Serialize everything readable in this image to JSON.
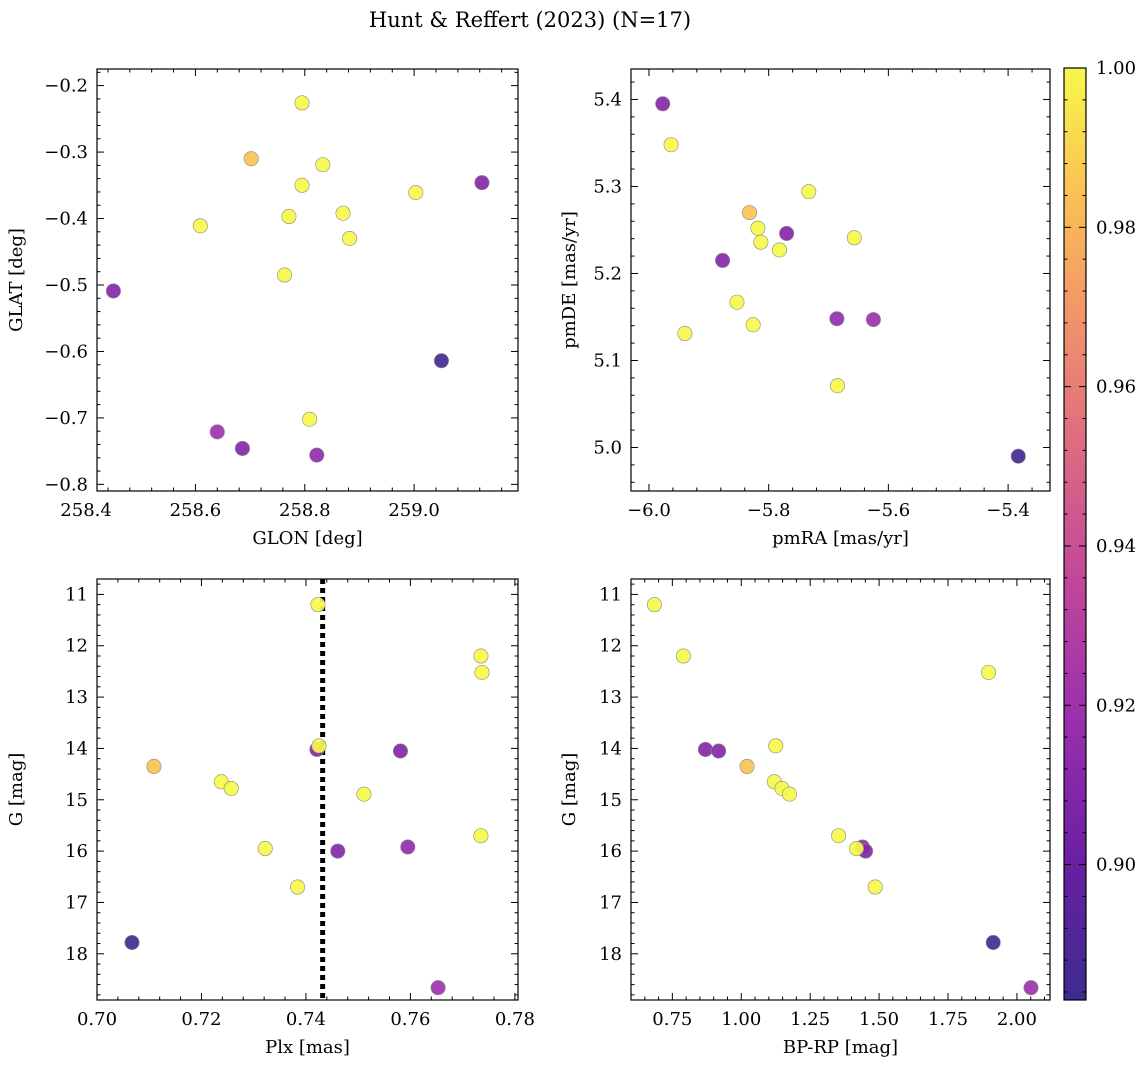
{
  "title": "Hunt & Reffert (2023) (N=17)",
  "colorbar": {
    "min": 0.883,
    "max": 1.0,
    "ticks": [
      0.9,
      0.92,
      0.94,
      0.96,
      0.98,
      1.0
    ],
    "tick_labels": [
      "0.90",
      "0.92",
      "0.94",
      "0.96",
      "0.98",
      "1.00"
    ],
    "colormap": "plasma"
  },
  "chart_data": [
    {
      "type": "scatter",
      "name": "glon-glat",
      "xlabel": "GLON [deg]",
      "ylabel": "GLAT [deg]",
      "xlim": [
        258.42,
        259.19
      ],
      "ylim": [
        -0.81,
        -0.175
      ],
      "x_ticks": [
        258.4,
        258.6,
        258.8,
        259.0
      ],
      "x_tick_labels": [
        "258.4",
        "258.6",
        "258.8",
        "259.0"
      ],
      "y_ticks": [
        -0.8,
        -0.7,
        -0.6,
        -0.5,
        -0.4,
        -0.3,
        -0.2
      ],
      "y_tick_labels": [
        "−0.8",
        "−0.7",
        "−0.6",
        "−0.5",
        "−0.4",
        "−0.3",
        "−0.2"
      ],
      "invert_y": false,
      "points": [
        {
          "x": 258.795,
          "y": -0.226,
          "c": 1.0
        },
        {
          "x": 258.702,
          "y": -0.31,
          "c": 0.985
        },
        {
          "x": 258.833,
          "y": -0.319,
          "c": 1.0
        },
        {
          "x": 259.124,
          "y": -0.346,
          "c": 0.91
        },
        {
          "x": 258.795,
          "y": -0.35,
          "c": 1.0
        },
        {
          "x": 259.003,
          "y": -0.361,
          "c": 1.0
        },
        {
          "x": 258.87,
          "y": -0.392,
          "c": 1.0
        },
        {
          "x": 258.771,
          "y": -0.397,
          "c": 1.0
        },
        {
          "x": 258.609,
          "y": -0.411,
          "c": 1.0
        },
        {
          "x": 258.882,
          "y": -0.43,
          "c": 1.0
        },
        {
          "x": 258.763,
          "y": -0.485,
          "c": 1.0
        },
        {
          "x": 258.45,
          "y": -0.509,
          "c": 0.91
        },
        {
          "x": 259.05,
          "y": -0.614,
          "c": 0.885
        },
        {
          "x": 258.809,
          "y": -0.702,
          "c": 1.0
        },
        {
          "x": 258.64,
          "y": -0.721,
          "c": 0.92
        },
        {
          "x": 258.686,
          "y": -0.746,
          "c": 0.91
        },
        {
          "x": 258.822,
          "y": -0.756,
          "c": 0.915
        }
      ]
    },
    {
      "type": "scatter",
      "name": "pm",
      "xlabel": "pmRA [mas/yr]",
      "ylabel": "pmDE [mas/yr]",
      "xlim": [
        -6.03,
        -5.33
      ],
      "ylim": [
        4.95,
        5.435
      ],
      "x_ticks": [
        -6.0,
        -5.8,
        -5.6,
        -5.4
      ],
      "x_tick_labels": [
        "−6.0",
        "−5.8",
        "−5.6",
        "−5.4"
      ],
      "y_ticks": [
        5.0,
        5.1,
        5.2,
        5.3,
        5.4
      ],
      "y_tick_labels": [
        "5.0",
        "5.1",
        "5.2",
        "5.3",
        "5.4"
      ],
      "invert_y": false,
      "points": [
        {
          "x": -5.977,
          "y": 5.395,
          "c": 0.91
        },
        {
          "x": -5.963,
          "y": 5.348,
          "c": 1.0
        },
        {
          "x": -5.733,
          "y": 5.294,
          "c": 1.0
        },
        {
          "x": -5.832,
          "y": 5.27,
          "c": 0.985
        },
        {
          "x": -5.818,
          "y": 5.252,
          "c": 1.0
        },
        {
          "x": -5.77,
          "y": 5.246,
          "c": 0.91
        },
        {
          "x": -5.657,
          "y": 5.241,
          "c": 1.0
        },
        {
          "x": -5.813,
          "y": 5.236,
          "c": 1.0
        },
        {
          "x": -5.782,
          "y": 5.227,
          "c": 1.0
        },
        {
          "x": -5.877,
          "y": 5.215,
          "c": 0.91
        },
        {
          "x": -5.853,
          "y": 5.167,
          "c": 1.0
        },
        {
          "x": -5.686,
          "y": 5.148,
          "c": 0.915
        },
        {
          "x": -5.625,
          "y": 5.147,
          "c": 0.92
        },
        {
          "x": -5.826,
          "y": 5.141,
          "c": 1.0
        },
        {
          "x": -5.94,
          "y": 5.131,
          "c": 1.0
        },
        {
          "x": -5.685,
          "y": 5.071,
          "c": 1.0
        },
        {
          "x": -5.383,
          "y": 4.99,
          "c": 0.885
        }
      ]
    },
    {
      "type": "scatter",
      "name": "plx-g",
      "xlabel": "Plx [mas]",
      "ylabel": "G [mag]",
      "xlim": [
        0.7,
        0.7806
      ],
      "ylim": [
        10.7,
        18.9
      ],
      "x_ticks": [
        0.7,
        0.72,
        0.74,
        0.76,
        0.78
      ],
      "x_tick_labels": [
        "0.70",
        "0.72",
        "0.74",
        "0.76",
        "0.78"
      ],
      "y_ticks": [
        11,
        12,
        13,
        14,
        15,
        16,
        17,
        18
      ],
      "y_tick_labels": [
        "11",
        "12",
        "13",
        "14",
        "15",
        "16",
        "17",
        "18"
      ],
      "invert_y": true,
      "vline": {
        "x": 0.7432,
        "style": "dotted",
        "color": "#000000"
      },
      "points": [
        {
          "x": 0.7423,
          "y": 11.2,
          "c": 1.0
        },
        {
          "x": 0.7735,
          "y": 12.2,
          "c": 1.0
        },
        {
          "x": 0.7737,
          "y": 12.52,
          "c": 1.0
        },
        {
          "x": 0.7421,
          "y": 14.02,
          "c": 0.91
        },
        {
          "x": 0.7425,
          "y": 13.95,
          "c": 1.0
        },
        {
          "x": 0.7581,
          "y": 14.05,
          "c": 0.91
        },
        {
          "x": 0.7109,
          "y": 14.35,
          "c": 0.985
        },
        {
          "x": 0.7238,
          "y": 14.65,
          "c": 1.0
        },
        {
          "x": 0.7257,
          "y": 14.78,
          "c": 1.0
        },
        {
          "x": 0.7511,
          "y": 14.89,
          "c": 1.0
        },
        {
          "x": 0.7735,
          "y": 15.7,
          "c": 1.0
        },
        {
          "x": 0.7322,
          "y": 15.95,
          "c": 1.0
        },
        {
          "x": 0.7461,
          "y": 16.0,
          "c": 0.91
        },
        {
          "x": 0.7595,
          "y": 15.92,
          "c": 0.915
        },
        {
          "x": 0.7384,
          "y": 16.7,
          "c": 1.0
        },
        {
          "x": 0.7067,
          "y": 17.78,
          "c": 0.885
        },
        {
          "x": 0.7653,
          "y": 18.66,
          "c": 0.92
        }
      ]
    },
    {
      "type": "scatter",
      "name": "color-magnitude",
      "xlabel": "BP-RP [mag]",
      "ylabel": "G [mag]",
      "xlim": [
        0.6,
        2.12
      ],
      "ylim": [
        10.7,
        18.9
      ],
      "x_ticks": [
        0.75,
        1.0,
        1.25,
        1.5,
        1.75,
        2.0
      ],
      "x_tick_labels": [
        "0.75",
        "1.00",
        "1.25",
        "1.50",
        "1.75",
        "2.00"
      ],
      "y_ticks": [
        11,
        12,
        13,
        14,
        15,
        16,
        17,
        18
      ],
      "y_tick_labels": [
        "11",
        "12",
        "13",
        "14",
        "15",
        "16",
        "17",
        "18"
      ],
      "invert_y": true,
      "points": [
        {
          "x": 0.685,
          "y": 11.2,
          "c": 1.0
        },
        {
          "x": 0.79,
          "y": 12.2,
          "c": 1.0
        },
        {
          "x": 1.897,
          "y": 12.52,
          "c": 1.0
        },
        {
          "x": 0.87,
          "y": 14.02,
          "c": 0.91
        },
        {
          "x": 0.918,
          "y": 14.05,
          "c": 0.91
        },
        {
          "x": 1.125,
          "y": 13.95,
          "c": 1.0
        },
        {
          "x": 1.021,
          "y": 14.35,
          "c": 0.985
        },
        {
          "x": 1.12,
          "y": 14.65,
          "c": 1.0
        },
        {
          "x": 1.148,
          "y": 14.78,
          "c": 1.0
        },
        {
          "x": 1.175,
          "y": 14.89,
          "c": 1.0
        },
        {
          "x": 1.353,
          "y": 15.7,
          "c": 1.0
        },
        {
          "x": 1.44,
          "y": 15.92,
          "c": 0.915
        },
        {
          "x": 1.451,
          "y": 16.0,
          "c": 0.91
        },
        {
          "x": 1.418,
          "y": 15.95,
          "c": 1.0
        },
        {
          "x": 1.486,
          "y": 16.7,
          "c": 1.0
        },
        {
          "x": 1.914,
          "y": 17.78,
          "c": 0.885
        },
        {
          "x": 2.051,
          "y": 18.66,
          "c": 0.92
        }
      ]
    }
  ]
}
